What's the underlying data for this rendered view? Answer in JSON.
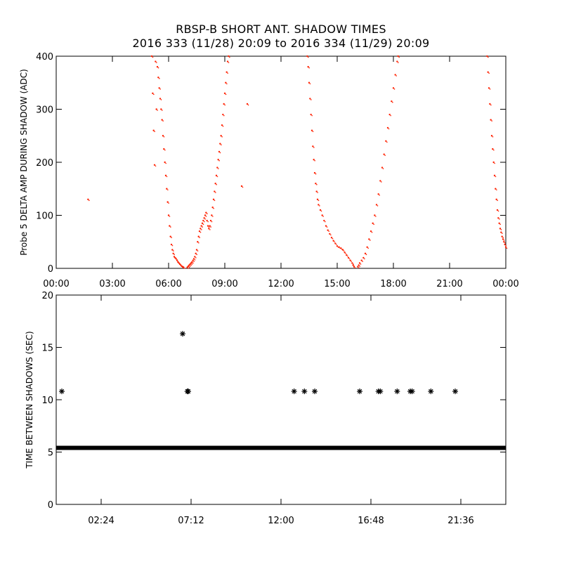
{
  "title": {
    "line1": "RBSP-B SHORT ANT. SHADOW TIMES",
    "line2": "2016 333 (11/28) 20:09 to 2016 334 (11/29) 20:09"
  },
  "chart_data": [
    {
      "type": "scatter",
      "ylabel": "Probe 5 DELTA AMP DURING SHADOW (ADC)",
      "xlabel": "",
      "x_units": "hours",
      "xlim": [
        0,
        24
      ],
      "ylim": [
        0,
        400
      ],
      "x_ticks": [
        {
          "value": 0,
          "label": "00:00"
        },
        {
          "value": 3,
          "label": "03:00"
        },
        {
          "value": 6,
          "label": "06:00"
        },
        {
          "value": 9,
          "label": "09:00"
        },
        {
          "value": 12,
          "label": "12:00"
        },
        {
          "value": 15,
          "label": "15:00"
        },
        {
          "value": 18,
          "label": "18:00"
        },
        {
          "value": 21,
          "label": "21:00"
        },
        {
          "value": 24,
          "label": "00:00"
        }
      ],
      "y_ticks": [
        {
          "value": 0,
          "label": "0"
        },
        {
          "value": 100,
          "label": "100"
        },
        {
          "value": 200,
          "label": "200"
        },
        {
          "value": 300,
          "label": "300"
        },
        {
          "value": 400,
          "label": "400"
        }
      ],
      "series": [
        {
          "color": "#ff2000",
          "points": [
            [
              1.7,
              130
            ],
            [
              10.2,
              310
            ],
            [
              9.9,
              155
            ],
            [
              5.1,
              400
            ],
            [
              5.15,
              330
            ],
            [
              5.2,
              260
            ],
            [
              5.25,
              195
            ],
            [
              5.3,
              390
            ],
            [
              5.35,
              300
            ],
            [
              5.4,
              380
            ],
            [
              5.45,
              360
            ],
            [
              5.5,
              340
            ],
            [
              5.55,
              320
            ],
            [
              5.6,
              300
            ],
            [
              5.65,
              280
            ],
            [
              5.7,
              250
            ],
            [
              5.75,
              225
            ],
            [
              5.8,
              200
            ],
            [
              5.85,
              175
            ],
            [
              5.9,
              150
            ],
            [
              5.95,
              125
            ],
            [
              6.0,
              100
            ],
            [
              6.05,
              80
            ],
            [
              6.1,
              60
            ],
            [
              6.15,
              45
            ],
            [
              6.2,
              35
            ],
            [
              6.25,
              28
            ],
            [
              6.3,
              22
            ],
            [
              6.35,
              20
            ],
            [
              6.4,
              18
            ],
            [
              6.45,
              15
            ],
            [
              6.5,
              12
            ],
            [
              6.55,
              10
            ],
            [
              6.6,
              8
            ],
            [
              6.65,
              6
            ],
            [
              6.7,
              4
            ],
            [
              6.75,
              3
            ],
            [
              6.8,
              2
            ],
            [
              7.0,
              2
            ],
            [
              7.05,
              4
            ],
            [
              7.1,
              6
            ],
            [
              7.15,
              8
            ],
            [
              7.2,
              10
            ],
            [
              7.25,
              12
            ],
            [
              7.3,
              15
            ],
            [
              7.35,
              18
            ],
            [
              7.4,
              22
            ],
            [
              7.45,
              28
            ],
            [
              7.5,
              35
            ],
            [
              7.55,
              50
            ],
            [
              7.6,
              60
            ],
            [
              7.65,
              70
            ],
            [
              7.7,
              75
            ],
            [
              7.75,
              80
            ],
            [
              7.8,
              85
            ],
            [
              7.85,
              90
            ],
            [
              7.9,
              95
            ],
            [
              7.95,
              100
            ],
            [
              8.0,
              105
            ],
            [
              8.05,
              90
            ],
            [
              8.1,
              80
            ],
            [
              8.15,
              75
            ],
            [
              8.2,
              80
            ],
            [
              8.25,
              90
            ],
            [
              8.3,
              100
            ],
            [
              8.35,
              115
            ],
            [
              8.4,
              130
            ],
            [
              8.45,
              145
            ],
            [
              8.5,
              160
            ],
            [
              8.55,
              175
            ],
            [
              8.6,
              190
            ],
            [
              8.65,
              205
            ],
            [
              8.7,
              220
            ],
            [
              8.75,
              235
            ],
            [
              8.8,
              250
            ],
            [
              8.85,
              270
            ],
            [
              8.9,
              290
            ],
            [
              8.95,
              310
            ],
            [
              9.0,
              330
            ],
            [
              9.05,
              350
            ],
            [
              9.1,
              370
            ],
            [
              9.15,
              390
            ],
            [
              9.2,
              400
            ],
            [
              13.4,
              400
            ],
            [
              13.45,
              380
            ],
            [
              13.5,
              350
            ],
            [
              13.55,
              320
            ],
            [
              13.6,
              290
            ],
            [
              13.65,
              260
            ],
            [
              13.7,
              230
            ],
            [
              13.75,
              205
            ],
            [
              13.8,
              180
            ],
            [
              13.85,
              160
            ],
            [
              13.9,
              145
            ],
            [
              13.95,
              130
            ],
            [
              14.0,
              120
            ],
            [
              14.1,
              110
            ],
            [
              14.2,
              100
            ],
            [
              14.3,
              90
            ],
            [
              14.4,
              80
            ],
            [
              14.5,
              72
            ],
            [
              14.6,
              65
            ],
            [
              14.7,
              58
            ],
            [
              14.8,
              52
            ],
            [
              14.9,
              47
            ],
            [
              15.0,
              42
            ],
            [
              15.1,
              40
            ],
            [
              15.2,
              38
            ],
            [
              15.3,
              35
            ],
            [
              15.4,
              30
            ],
            [
              15.5,
              25
            ],
            [
              15.6,
              20
            ],
            [
              15.7,
              15
            ],
            [
              15.8,
              10
            ],
            [
              15.85,
              6
            ],
            [
              15.9,
              3
            ],
            [
              16.1,
              3
            ],
            [
              16.15,
              6
            ],
            [
              16.2,
              10
            ],
            [
              16.3,
              15
            ],
            [
              16.4,
              20
            ],
            [
              16.5,
              28
            ],
            [
              16.6,
              40
            ],
            [
              16.7,
              55
            ],
            [
              16.8,
              70
            ],
            [
              16.9,
              85
            ],
            [
              17.0,
              100
            ],
            [
              17.1,
              120
            ],
            [
              17.2,
              140
            ],
            [
              17.3,
              165
            ],
            [
              17.4,
              190
            ],
            [
              17.5,
              215
            ],
            [
              17.6,
              240
            ],
            [
              17.7,
              265
            ],
            [
              17.8,
              290
            ],
            [
              17.9,
              315
            ],
            [
              18.0,
              340
            ],
            [
              18.1,
              365
            ],
            [
              18.2,
              390
            ],
            [
              18.25,
              400
            ],
            [
              23.0,
              400
            ],
            [
              23.05,
              370
            ],
            [
              23.1,
              340
            ],
            [
              23.15,
              310
            ],
            [
              23.2,
              280
            ],
            [
              23.25,
              250
            ],
            [
              23.3,
              225
            ],
            [
              23.35,
              200
            ],
            [
              23.4,
              175
            ],
            [
              23.45,
              150
            ],
            [
              23.5,
              130
            ],
            [
              23.55,
              110
            ],
            [
              23.6,
              95
            ],
            [
              23.65,
              85
            ],
            [
              23.7,
              75
            ],
            [
              23.75,
              68
            ],
            [
              23.8,
              60
            ],
            [
              23.85,
              55
            ],
            [
              23.9,
              50
            ],
            [
              23.95,
              45
            ],
            [
              24.0,
              40
            ]
          ]
        }
      ]
    },
    {
      "type": "scatter",
      "ylabel": "TIME BETWEEN SHADOWS (SEC)",
      "xlabel": "",
      "x_units": "hours",
      "xlim": [
        0,
        24
      ],
      "ylim": [
        0,
        20
      ],
      "x_ticks": [
        {
          "value": 2.4,
          "label": "02:24"
        },
        {
          "value": 7.2,
          "label": "07:12"
        },
        {
          "value": 12.0,
          "label": "12:00"
        },
        {
          "value": 16.8,
          "label": "16:48"
        },
        {
          "value": 21.6,
          "label": "21:36"
        }
      ],
      "y_ticks": [
        {
          "value": 0,
          "label": "0"
        },
        {
          "value": 5,
          "label": "5"
        },
        {
          "value": 10,
          "label": "10"
        },
        {
          "value": 15,
          "label": "15"
        },
        {
          "value": 20,
          "label": "20"
        }
      ],
      "baseline": {
        "value": 5.4,
        "x_start": 0,
        "x_end": 24
      },
      "series": [
        {
          "color": "#000000",
          "points": [
            [
              0.3,
              10.8
            ],
            [
              6.75,
              16.3
            ],
            [
              7.0,
              10.8
            ],
            [
              7.05,
              10.8
            ],
            [
              12.7,
              10.8
            ],
            [
              13.25,
              10.8
            ],
            [
              13.8,
              10.8
            ],
            [
              16.2,
              10.8
            ],
            [
              17.2,
              10.8
            ],
            [
              17.3,
              10.8
            ],
            [
              18.2,
              10.8
            ],
            [
              18.9,
              10.8
            ],
            [
              19.0,
              10.8
            ],
            [
              20.0,
              10.8
            ],
            [
              21.3,
              10.8
            ]
          ]
        }
      ]
    }
  ]
}
